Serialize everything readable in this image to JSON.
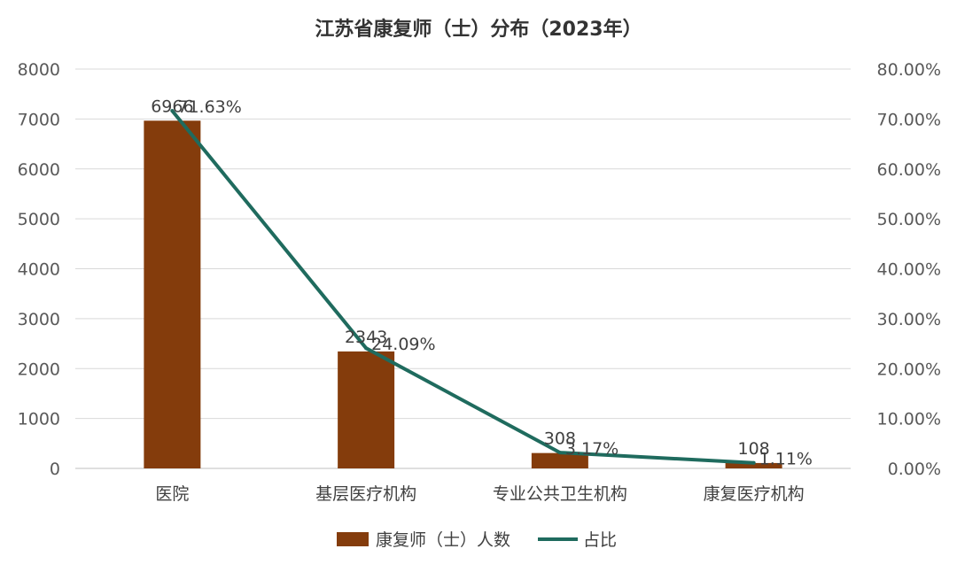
{
  "chart_data": {
    "type": "bar+line",
    "title": "江苏省康复师（士）分布（2023年）",
    "categories": [
      "医院",
      "基层医疗机构",
      "专业公共卫生机构",
      "康复医疗机构"
    ],
    "series": [
      {
        "name": "康复师（士）人数",
        "type": "bar",
        "axis": "left",
        "values": [
          6966,
          2343,
          308,
          108
        ],
        "labels": [
          "6966",
          "2343",
          "308",
          "108"
        ],
        "color": "#843C0C"
      },
      {
        "name": "占比",
        "type": "line",
        "axis": "right",
        "values": [
          71.63,
          24.09,
          3.17,
          1.11
        ],
        "labels": [
          "71.63%",
          "24.09%",
          "3.17%",
          "1.11%"
        ],
        "color": "#1F6B5E"
      }
    ],
    "y_left": {
      "range": [
        0,
        8000
      ],
      "ticks": [
        "0",
        "1000",
        "2000",
        "3000",
        "4000",
        "5000",
        "6000",
        "7000",
        "8000"
      ]
    },
    "y_right": {
      "range": [
        0,
        80
      ],
      "ticks": [
        "0.00%",
        "10.00%",
        "20.00%",
        "30.00%",
        "40.00%",
        "50.00%",
        "60.00%",
        "70.00%",
        "80.00%"
      ]
    },
    "grid": true,
    "legend_position": "bottom"
  }
}
